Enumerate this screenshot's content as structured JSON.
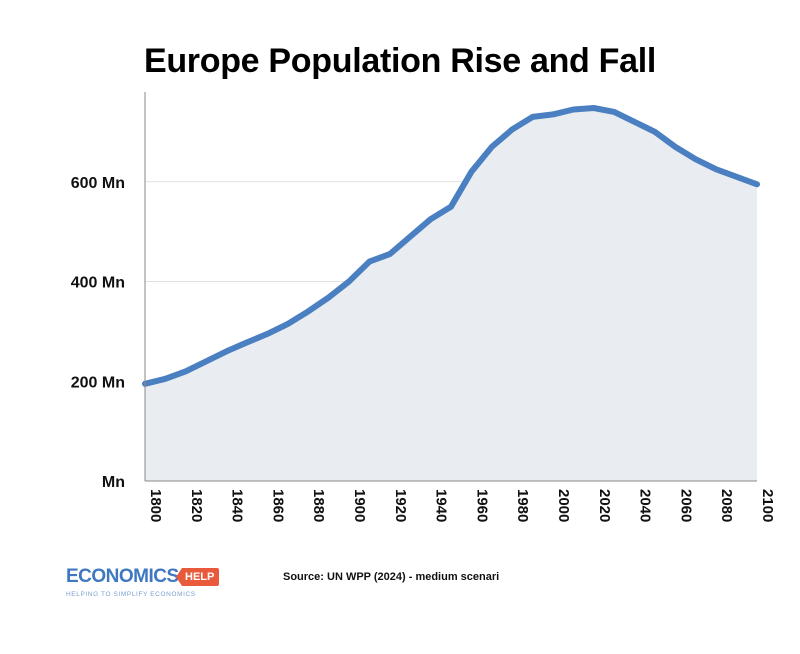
{
  "chart_data": {
    "type": "area",
    "title": "Europe Population Rise and Fall",
    "xlabel": "",
    "ylabel": "",
    "x": [
      1800,
      1810,
      1820,
      1830,
      1840,
      1850,
      1860,
      1870,
      1880,
      1890,
      1900,
      1910,
      1920,
      1930,
      1940,
      1950,
      1960,
      1970,
      1980,
      1990,
      2000,
      2010,
      2020,
      2030,
      2040,
      2050,
      2060,
      2070,
      2080,
      2090,
      2100
    ],
    "values": [
      195,
      205,
      220,
      240,
      260,
      278,
      295,
      315,
      340,
      368,
      400,
      440,
      455,
      490,
      525,
      550,
      620,
      670,
      705,
      730,
      735,
      745,
      748,
      740,
      720,
      700,
      670,
      645,
      625,
      610,
      595
    ],
    "xlim": [
      1800,
      2100
    ],
    "ylim": [
      0,
      780
    ],
    "x_ticks": [
      1800,
      1820,
      1840,
      1860,
      1880,
      1900,
      1920,
      1940,
      1960,
      1980,
      2000,
      2020,
      2040,
      2060,
      2080,
      2100
    ],
    "y_ticks": [
      {
        "value": 0,
        "label": "Mn"
      },
      {
        "value": 200,
        "label": "200 Mn"
      },
      {
        "value": 400,
        "label": "400 Mn"
      },
      {
        "value": 600,
        "label": "600 Mn"
      }
    ],
    "grid": true,
    "colors": {
      "line": "#4a7fc1",
      "fill": "#e9ecf0",
      "grid": "#e2e2e2",
      "axis": "#888888"
    }
  },
  "footer": {
    "source": "Source: UN WPP (2024) - medium scenari",
    "logo_word": "ECONOMICS",
    "logo_badge": "HELP",
    "logo_tagline": "HELPING TO SIMPLIFY ECONOMICS"
  }
}
